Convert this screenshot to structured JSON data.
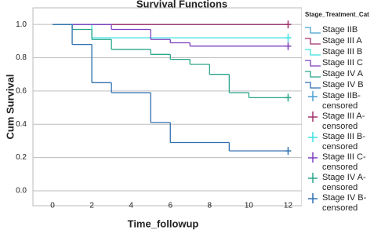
{
  "chart_data": {
    "type": "step",
    "title": "Survival Functions",
    "x_label": "Time_followup",
    "y_label": "Cum Survival",
    "legend_title": "Stage_Treatment_Cat",
    "grid": true,
    "xlim": [
      -1,
      12.7
    ],
    "ylim": [
      -0.09,
      1.1
    ],
    "xticks": [
      0,
      2,
      4,
      6,
      8,
      10,
      12
    ],
    "yticks": [
      {
        "value": 0,
        "label": "0.0"
      },
      0.2,
      0.4,
      0.6,
      0.8,
      {
        "value": 1,
        "label": "1.0"
      }
    ],
    "series": [
      {
        "name": "Stage IIB",
        "color": "#4a9fd4",
        "mark": "step",
        "x": [
          0,
          12
        ],
        "values": [
          1,
          1
        ]
      },
      {
        "name": "Stage III A",
        "color": "#a0306a",
        "mark": "step",
        "x": [
          0,
          12
        ],
        "values": [
          1,
          1
        ]
      },
      {
        "name": "Stage III B",
        "color": "#3fe0e0",
        "mark": "step",
        "x": [
          0,
          2,
          12
        ],
        "values": [
          1,
          0.92,
          0.92
        ]
      },
      {
        "name": "Stage III C",
        "color": "#7b3fbf",
        "mark": "step",
        "x": [
          0,
          3,
          5,
          6,
          7,
          12
        ],
        "values": [
          1,
          0.97,
          0.91,
          0.89,
          0.87,
          0.87
        ]
      },
      {
        "name": "Stage IV A",
        "color": "#2aa58a",
        "mark": "step",
        "x": [
          0,
          1,
          2,
          3,
          5,
          6,
          7,
          8,
          9,
          10,
          12
        ],
        "values": [
          1,
          0.97,
          0.91,
          0.85,
          0.82,
          0.79,
          0.76,
          0.7,
          0.59,
          0.56,
          0.56
        ]
      },
      {
        "name": "Stage IV B",
        "color": "#2f6fb0",
        "mark": "step",
        "x": [
          0,
          1,
          2,
          3,
          5,
          6,
          9,
          12
        ],
        "values": [
          1,
          0.88,
          0.65,
          0.59,
          0.41,
          0.29,
          0.24,
          0.24
        ]
      },
      {
        "name": "Stage IIB-censored",
        "color": "#4a9fd4",
        "mark": "plus",
        "x": [],
        "values": []
      },
      {
        "name": "Stage III A-censored",
        "color": "#a0306a",
        "mark": "plus",
        "x": [
          12
        ],
        "values": [
          1
        ]
      },
      {
        "name": "Stage III B-censored",
        "color": "#3fe0e0",
        "mark": "plus",
        "x": [
          12
        ],
        "values": [
          0.92
        ]
      },
      {
        "name": "Stage III C-censored",
        "color": "#7b3fbf",
        "mark": "plus",
        "x": [
          12
        ],
        "values": [
          0.87
        ]
      },
      {
        "name": "Stage IV A-censored",
        "color": "#2aa58a",
        "mark": "plus",
        "x": [
          12
        ],
        "values": [
          0.56
        ]
      },
      {
        "name": "Stage IV B-censored",
        "color": "#2f6fb0",
        "mark": "plus",
        "x": [
          12
        ],
        "values": [
          0.24
        ]
      }
    ]
  }
}
